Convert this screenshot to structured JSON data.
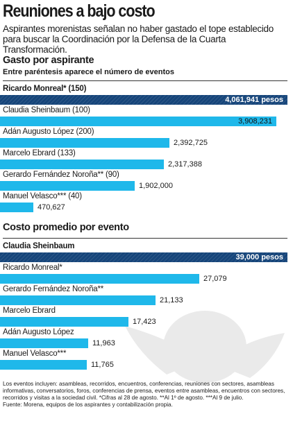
{
  "header": {
    "title": "Reuniones a bajo costo",
    "subtitle": "Aspirantes morenistas señalan no haber gastado el tope establecido para buscar la Coordinación por la Defensa de la Cuarta Transformación."
  },
  "section1": {
    "title": "Gasto por aspirante",
    "note": "Entre paréntesis aparece el número de eventos"
  },
  "section2": {
    "title": "Costo promedio por evento"
  },
  "footer": {
    "text": "Los eventos incluyen: asambleas, recorridos, encuentros, conferencias, reuniones con sectores, asambleas informativas, conversatorios, foros, conferencias de prensa, eventos entre asambleas, encuentros con sectores, recorridos y visitas a la sociedad civil. *Cifras al 28 de agosto. **Al 1º de agosto. ***Al 9 de julio.",
    "source": "Fuente: Morena, equipos de los aspirantes y contabilización propia."
  },
  "colors": {
    "highlight": "#16457a",
    "bar": "#1fb8ea"
  },
  "chart_data": [
    {
      "type": "bar",
      "orientation": "horizontal",
      "title": "Gasto por aspirante",
      "subtitle": "Entre paréntesis aparece el número de eventos",
      "categories": [
        "Ricardo Monreal* (150)",
        "Claudia Sheinbaum (100)",
        "Adán Augusto López (200)",
        "Marcelo  Ebrard (133)",
        "Gerardo Fernández Noroña** (90)",
        "Manuel Velasco*** (40)"
      ],
      "values": [
        4061941,
        3908231,
        2392725,
        2317388,
        1902000,
        470627
      ],
      "value_labels": [
        "4,061,941 pesos",
        "3,908,231",
        "2,392,725",
        "2,317,388",
        "1,902,000",
        "470,627"
      ],
      "highlight_index": 0
    },
    {
      "type": "bar",
      "orientation": "horizontal",
      "title": "Costo promedio por evento",
      "categories": [
        "Claudia Sheinbaum",
        "Ricardo Monreal*",
        "Gerardo Fernández Noroña**",
        "Marcelo  Ebrard",
        "Adán Augusto López",
        "Manuel Velasco***"
      ],
      "values": [
        39000,
        27079,
        21133,
        17423,
        11963,
        11765
      ],
      "value_labels": [
        "39,000 pesos",
        "27,079",
        "21,133",
        "17,423",
        "11,963",
        "11,765"
      ],
      "highlight_index": 0
    }
  ]
}
